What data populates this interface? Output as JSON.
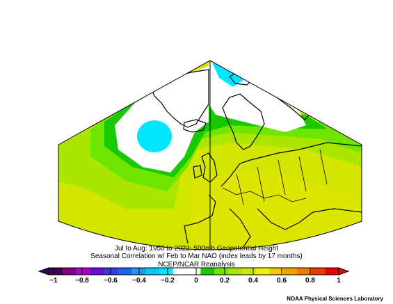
{
  "title": {
    "line1": "Jul to Aug: 1950 to 2022: 500mb Geopotential Height",
    "line2": "Seasonal Correlation w/ Feb to Mar NAO (index leads by 17 months)",
    "line3": "NCEP/NCAR Reanalysis"
  },
  "colorbar": {
    "ticks": [
      "−1",
      "−0.8",
      "−0.6",
      "−0.4",
      "−0.2",
      "0",
      "0.2",
      "0.4",
      "0.6",
      "0.8",
      "1"
    ],
    "colors": [
      "#3b0050",
      "#800080",
      "#b000c8",
      "#6a0dd0",
      "#3b3bdc",
      "#1e64e6",
      "#1e96f0",
      "#00c8f0",
      "#00e6ff",
      "#ffffff",
      "#ffffff",
      "#19c800",
      "#6ee600",
      "#aae600",
      "#d2e600",
      "#f0f000",
      "#f5c800",
      "#f5a000",
      "#f07800",
      "#e63c00",
      "#e60000"
    ],
    "min": -1,
    "max": 1
  },
  "map": {
    "field_colors": {
      "zero_band": "#ffffff",
      "light_cyan": "#00e6ff",
      "green_02": "#19c800",
      "lime_03": "#6ee600",
      "yellowgreen_04": "#aae600",
      "yellow_05": "#d2e600",
      "coastline": "#000000"
    }
  },
  "credit": "NOAA Physical Sciences Laboratory"
}
